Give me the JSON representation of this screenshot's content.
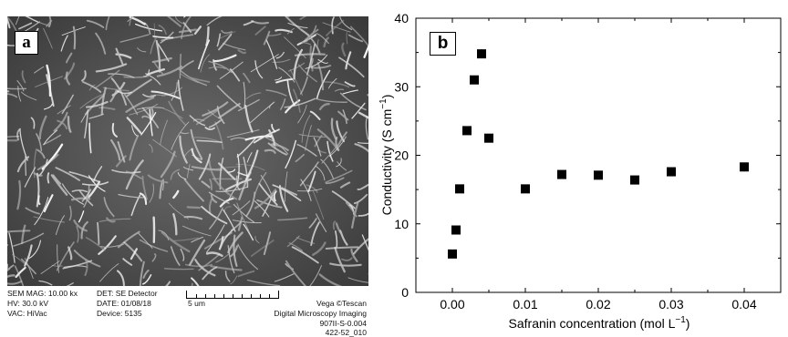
{
  "panel_a": {
    "letter": "a",
    "info": {
      "sem_mag": "SEM MAG: 10.00 kx",
      "hv": "HV:  30.0 kV",
      "vac": "VAC: HiVac",
      "det": "DET: SE Detector",
      "date": "DATE: 01/08/18",
      "device": "Device: 5135",
      "scale": "5 um",
      "brand": "Vega ©Tescan",
      "imaging": "Digital Microscopy Imaging",
      "id1": "907II-S-0.004",
      "id2": "422-52_010"
    }
  },
  "panel_b": {
    "letter": "b",
    "chart_data": {
      "type": "scatter",
      "xlabel_main": "Safranin concentration (mol L",
      "xlabel_sup": "−1",
      "xlabel_close": ")",
      "ylabel_main": "Conductivity (S cm",
      "ylabel_sup": "−1",
      "ylabel_close": ")",
      "xlim": [
        -0.005,
        0.045
      ],
      "ylim": [
        0,
        40
      ],
      "xticks": [
        "0.00",
        "0.01",
        "0.02",
        "0.03",
        "0.04"
      ],
      "xtick_values": [
        0.0,
        0.01,
        0.02,
        0.03,
        0.04
      ],
      "yticks": [
        "0",
        "10",
        "20",
        "30",
        "40"
      ],
      "ytick_values": [
        0,
        10,
        20,
        30,
        40
      ],
      "grid": false,
      "marker": "square",
      "series": [
        {
          "x": [
            0.0,
            0.0005,
            0.001,
            0.002,
            0.003,
            0.004,
            0.005,
            0.01,
            0.015,
            0.02,
            0.025,
            0.03,
            0.04
          ],
          "y": [
            5.6,
            9.1,
            15.1,
            23.6,
            31.0,
            34.8,
            22.5,
            15.1,
            17.2,
            17.1,
            16.4,
            17.6,
            18.3
          ]
        }
      ]
    }
  }
}
